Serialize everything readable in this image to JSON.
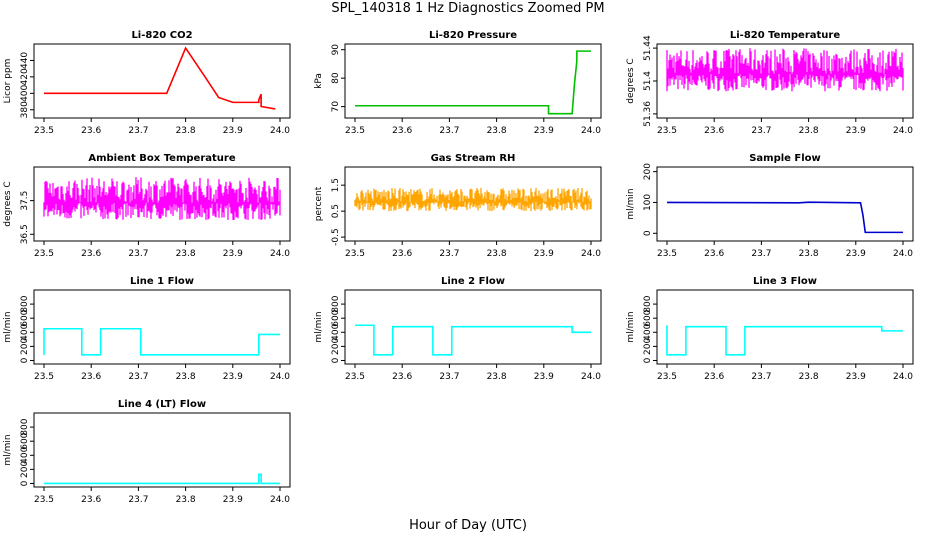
{
  "page": {
    "title": "SPL_140318  1 Hz Diagnostics Zoomed PM",
    "xlabel": "Hour of Day (UTC)"
  },
  "chart_data": [
    {
      "title": "Li-820 CO2",
      "type": "line",
      "ylabel": "Licor ppm",
      "color": "#ff0000",
      "xlim": [
        23.5,
        24.0
      ],
      "ylim": [
        370,
        460
      ],
      "yticks": [
        380,
        400,
        420,
        440
      ],
      "xticks": [
        "23.5",
        "23.6",
        "23.7",
        "23.8",
        "23.9",
        "24.0"
      ],
      "series": [
        {
          "x": [
            23.5,
            23.76,
            23.76,
            23.8,
            23.8,
            23.84,
            23.84,
            23.87,
            23.87,
            23.9,
            23.9,
            23.955,
            23.955,
            23.96,
            23.96,
            23.99
          ],
          "values": [
            400,
            400,
            400,
            455,
            455,
            421,
            421,
            395,
            395,
            389,
            389,
            389,
            392,
            399,
            384,
            381
          ]
        }
      ]
    },
    {
      "title": "Li-820 Pressure",
      "type": "line",
      "ylabel": "kPa",
      "color": "#00c000",
      "xlim": [
        23.5,
        24.0
      ],
      "ylim": [
        66,
        92
      ],
      "yticks": [
        70,
        80,
        90
      ],
      "xticks": [
        "23.5",
        "23.6",
        "23.7",
        "23.8",
        "23.9",
        "24.0"
      ],
      "series": [
        {
          "x": [
            23.5,
            23.91,
            23.91,
            23.95,
            23.96,
            23.965,
            23.97,
            23.97,
            24.0
          ],
          "values": [
            70.3,
            70.3,
            67.5,
            67.5,
            67.5,
            78,
            86,
            89.5,
            89.5
          ]
        }
      ]
    },
    {
      "title": "Li-820 Temperature",
      "type": "line",
      "ylabel": "degrees C",
      "color": "#ff00ff",
      "xlim": [
        23.5,
        24.0
      ],
      "ylim": [
        51.355,
        51.445
      ],
      "yticks": [
        51.36,
        51.4,
        51.44
      ],
      "xticks": [
        "23.5",
        "23.6",
        "23.7",
        "23.8",
        "23.9",
        "24.0"
      ],
      "series": [
        {
          "x": [
            23.5,
            24.0
          ],
          "values": [
            51.37,
            51.44
          ]
        }
      ]
    },
    {
      "title": "Ambient Box Temperature",
      "type": "line",
      "ylabel": "degrees C",
      "color": "#ff00ff",
      "xlim": [
        23.5,
        24.0
      ],
      "ylim": [
        36.3,
        38.5
      ],
      "yticks": [
        36.5,
        37.5
      ],
      "xticks": [
        "23.5",
        "23.6",
        "23.7",
        "23.8",
        "23.9",
        "24.0"
      ],
      "series": [
        {
          "x": [
            23.5,
            24.0
          ],
          "values": [
            36.5,
            38.2
          ]
        }
      ]
    },
    {
      "title": "Gas Stream RH",
      "type": "line",
      "ylabel": "percent",
      "color": "#ffa500",
      "xlim": [
        23.5,
        24.0
      ],
      "ylim": [
        -0.65,
        2.2
      ],
      "yticks": [
        -0.5,
        0.5,
        1.5
      ],
      "xticks": [
        "23.5",
        "23.6",
        "23.7",
        "23.8",
        "23.9",
        "24.0"
      ],
      "series": [
        {
          "x": [
            23.5,
            24.0
          ],
          "values": [
            0.2,
            1.4
          ]
        }
      ]
    },
    {
      "title": "Sample Flow",
      "type": "line",
      "ylabel": "ml/min",
      "color": "#0000cd",
      "xlim": [
        23.5,
        24.0
      ],
      "ylim": [
        -25,
        215
      ],
      "yticks": [
        0,
        100,
        200
      ],
      "xticks": [
        "23.5",
        "23.6",
        "23.7",
        "23.8",
        "23.9",
        "24.0"
      ],
      "series": [
        {
          "x": [
            23.5,
            23.78,
            23.8,
            23.91,
            23.915,
            23.92,
            24.0
          ],
          "values": [
            100,
            99,
            101,
            99,
            60,
            3,
            3
          ]
        }
      ]
    },
    {
      "title": "Line 1 Flow",
      "type": "line",
      "ylabel": "ml/min",
      "color": "#00ffff",
      "xlim": [
        23.5,
        24.0
      ],
      "ylim": [
        -50,
        1000
      ],
      "yticks": [
        0,
        200,
        400,
        600,
        800
      ],
      "xticks": [
        "23.5",
        "23.6",
        "23.7",
        "23.8",
        "23.9",
        "24.0"
      ],
      "series": [
        {
          "x": [
            23.5,
            23.5,
            23.58,
            23.58,
            23.62,
            23.62,
            23.705,
            23.705,
            23.955,
            23.955,
            24.0
          ],
          "values": [
            80,
            450,
            450,
            80,
            80,
            450,
            450,
            80,
            80,
            370,
            370
          ]
        }
      ]
    },
    {
      "title": "Line 2 Flow",
      "type": "line",
      "ylabel": "ml/min",
      "color": "#00ffff",
      "xlim": [
        23.5,
        24.0
      ],
      "ylim": [
        -50,
        1000
      ],
      "yticks": [
        0,
        200,
        400,
        600,
        800
      ],
      "xticks": [
        "23.5",
        "23.6",
        "23.7",
        "23.8",
        "23.9",
        "24.0"
      ],
      "series": [
        {
          "x": [
            23.5,
            23.54,
            23.54,
            23.58,
            23.58,
            23.665,
            23.665,
            23.705,
            23.705,
            23.96,
            23.96,
            24.0
          ],
          "values": [
            500,
            500,
            80,
            80,
            480,
            480,
            80,
            80,
            480,
            480,
            400,
            400
          ]
        }
      ]
    },
    {
      "title": "Line 3 Flow",
      "type": "line",
      "ylabel": "ml/min",
      "color": "#00ffff",
      "xlim": [
        23.5,
        24.0
      ],
      "ylim": [
        -50,
        1000
      ],
      "yticks": [
        0,
        200,
        400,
        600,
        800
      ],
      "xticks": [
        "23.5",
        "23.6",
        "23.7",
        "23.8",
        "23.9",
        "24.0"
      ],
      "series": [
        {
          "x": [
            23.5,
            23.5,
            23.54,
            23.54,
            23.625,
            23.625,
            23.665,
            23.665,
            23.955,
            23.955,
            24.0
          ],
          "values": [
            500,
            80,
            80,
            480,
            480,
            80,
            80,
            480,
            480,
            420,
            420
          ]
        }
      ]
    },
    {
      "title": "Line 4 (LT) Flow",
      "type": "line",
      "ylabel": "ml/min",
      "color": "#00ffff",
      "xlim": [
        23.5,
        24.0
      ],
      "ylim": [
        -50,
        1000
      ],
      "yticks": [
        0,
        200,
        400,
        600,
        800
      ],
      "xticks": [
        "23.5",
        "23.6",
        "23.7",
        "23.8",
        "23.9",
        "24.0"
      ],
      "series": [
        {
          "x": [
            23.5,
            23.955,
            23.955,
            23.96,
            23.96,
            24.0
          ],
          "values": [
            0,
            0,
            130,
            130,
            0,
            0
          ]
        }
      ]
    }
  ]
}
